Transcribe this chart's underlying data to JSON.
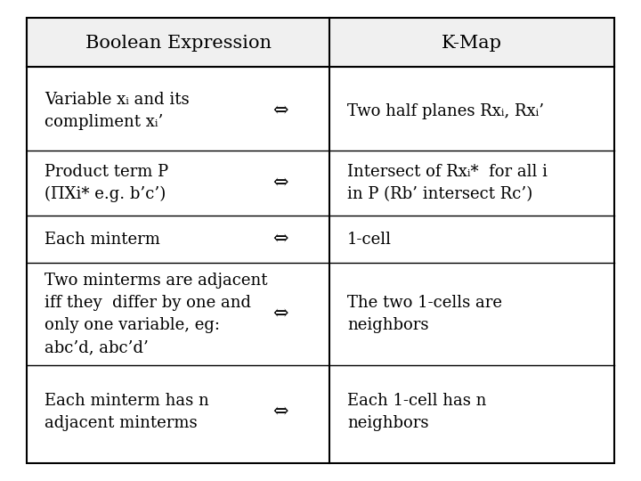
{
  "title_left": "Boolean Expression",
  "title_right": "K-Map",
  "bg_color": "#ffffff",
  "border_color": "#000000",
  "font_size": 13,
  "title_font_size": 15,
  "rows": [
    {
      "left": "Variable xᵢ and its\ncompliment xᵢ’",
      "right": "Two half planes Rxᵢ, Rxᵢ’"
    },
    {
      "left": "Product term P\n(ΠXi* e.g. b’c’)",
      "right": "Intersect of Rxᵢ*  for all i\nin P (Rb’ intersect Rc’)"
    },
    {
      "left": "Each minterm",
      "right": "1-cell"
    },
    {
      "left": "Two minterms are adjacent\niff they  differ by one and\nonly one variable, eg:\nabc’d, abc’d’",
      "right": "The two 1-cells are\nneighbors"
    },
    {
      "left": "Each minterm has n\nadjacent minterms",
      "right": "Each 1-cell has n\nneighbors"
    }
  ]
}
